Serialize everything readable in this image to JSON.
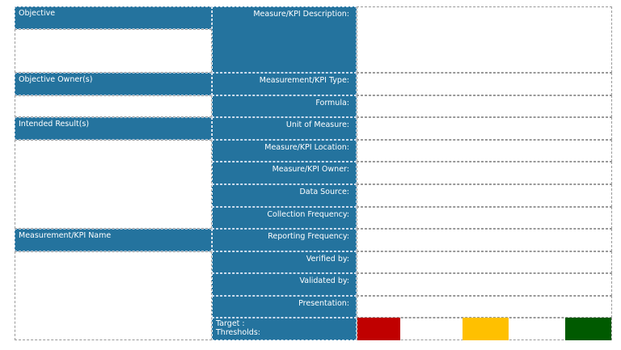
{
  "left": {
    "objective": "Objective",
    "objective_owner": "Objective Owner(s)",
    "intended_result": "Intended Result(s)",
    "kpi_name": "Measurement/KPI Name"
  },
  "fields": [
    "Measure/KPI Description:",
    "Measurement/KPI Type:",
    "Formula:",
    "Unit of Measure:",
    "Measure/KPI Location:",
    "Measure/KPI Owner:",
    "Data Source:",
    "Collection Frequency:",
    "Reporting Frequency:",
    "Verified by:",
    "Validated by:",
    "Presentation:"
  ],
  "target": {
    "line1": "Target :",
    "line2": "Thresholds:"
  },
  "threshold_colors": {
    "red": "#c00000",
    "yellow": "#ffc000",
    "green": "#005a00"
  }
}
